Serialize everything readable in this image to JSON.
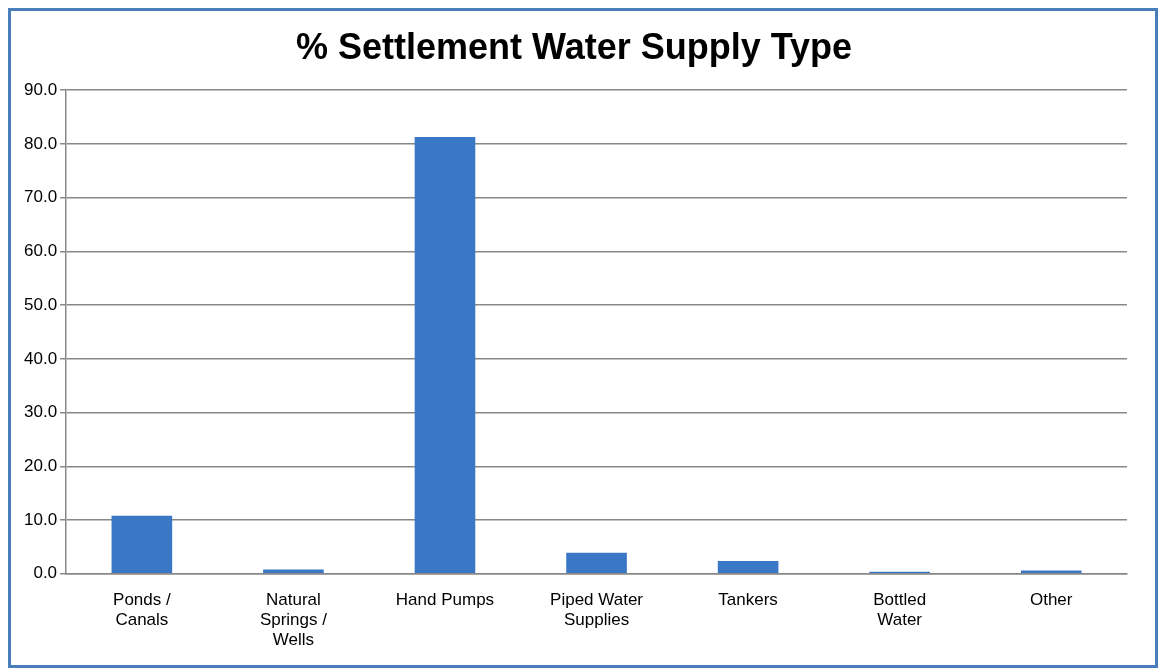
{
  "chart_data": {
    "type": "bar",
    "title": "% Settlement Water Supply Type",
    "categories": [
      "Ponds / Canals",
      "Natural Springs / Wells",
      "Hand Pumps",
      "Piped Water Supplies",
      "Tankers",
      "Bottled Water",
      "Other"
    ],
    "values": [
      10.8,
      0.8,
      81.3,
      3.9,
      2.4,
      0.4,
      0.6
    ],
    "color": "#3a78c6",
    "ylim": [
      0,
      90
    ],
    "yticks": [
      {
        "value": 0,
        "label": "0.0"
      },
      {
        "value": 10,
        "label": "10.0"
      },
      {
        "value": 20,
        "label": "20.0"
      },
      {
        "value": 30,
        "label": "30.0"
      },
      {
        "value": 40,
        "label": "40.0"
      },
      {
        "value": 50,
        "label": "50.0"
      },
      {
        "value": 60,
        "label": "60.0"
      },
      {
        "value": 70,
        "label": "70.0"
      },
      {
        "value": 80,
        "label": "80.0"
      },
      {
        "value": 90,
        "label": "90.0"
      }
    ],
    "grid": "y",
    "legend": false
  }
}
